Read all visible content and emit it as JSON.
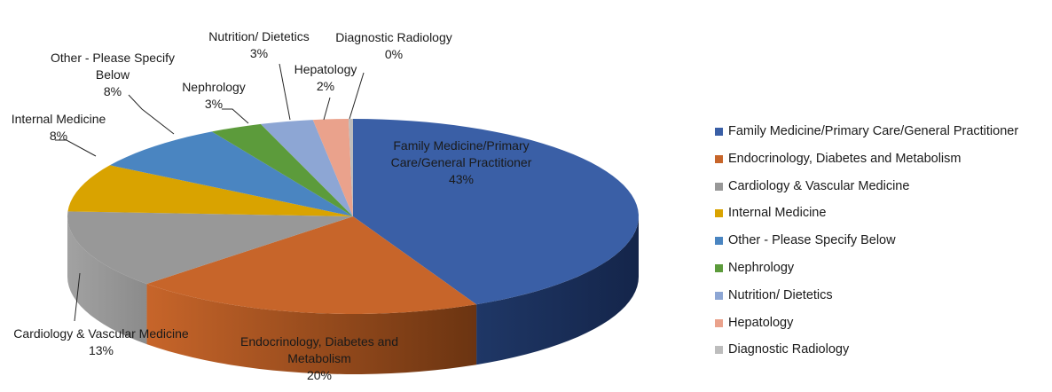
{
  "chart_data": {
    "type": "pie",
    "style": "3d",
    "title": "",
    "legend_position": "right",
    "slices": [
      {
        "label": "Family Medicine/Primary Care/General Practitioner",
        "value": 43,
        "value_label": "43%",
        "color": "#3a5fa6"
      },
      {
        "label": "Endocrinology, Diabetes and Metabolism",
        "value": 20,
        "value_label": "20%",
        "color": "#c7652a"
      },
      {
        "label": "Cardiology & Vascular Medicine",
        "value": 13,
        "value_label": "13%",
        "color": "#989898"
      },
      {
        "label": "Internal Medicine",
        "value": 8,
        "value_label": "8%",
        "color": "#d9a300"
      },
      {
        "label": "Other - Please Specify Below",
        "value": 8,
        "value_label": "8%",
        "color": "#4a85c1"
      },
      {
        "label": "Nephrology",
        "value": 3,
        "value_label": "3%",
        "color": "#5c9b3b"
      },
      {
        "label": "Nutrition/ Dietetics",
        "value": 3,
        "value_label": "3%",
        "color": "#8da6d4"
      },
      {
        "label": "Hepatology",
        "value": 2,
        "value_label": "2%",
        "color": "#eaa28c"
      },
      {
        "label": "Diagnostic Radiology",
        "value": 0,
        "value_label": "0%",
        "color": "#bdbdbd"
      }
    ],
    "labels": {
      "family_l1": "Family Medicine/Primary",
      "family_l2": "Care/General Practitioner",
      "endo_l1": "Endocrinology, Diabetes and",
      "endo_l2": "Metabolism",
      "cardio_l1": "Cardiology & Vascular Medicine",
      "internal_l1": "Internal Medicine",
      "other_l1": "Other - Please Specify",
      "other_l2": "Below",
      "nephro_l1": "Nephrology",
      "nutrition_l1": "Nutrition/ Dietetics",
      "hepato_l1": "Hepatology",
      "radiology_l1": "Diagnostic Radiology"
    }
  }
}
